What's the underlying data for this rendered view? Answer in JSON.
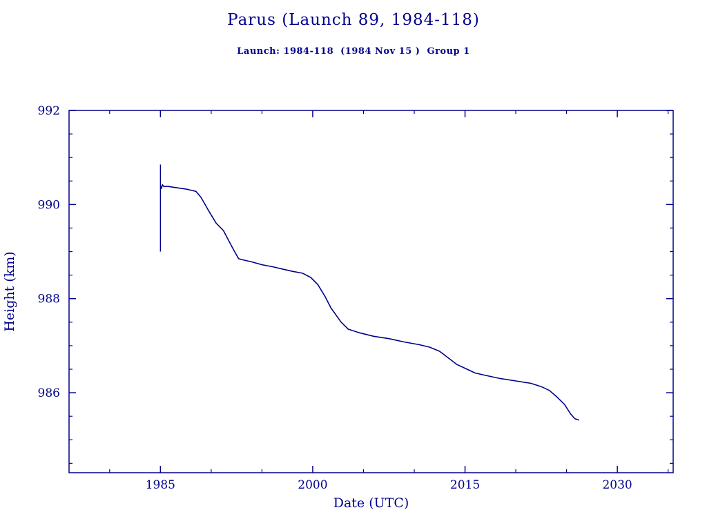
{
  "colors": {
    "ink": "#00008B",
    "background": "#ffffff",
    "line": "#00008B"
  },
  "chart_data": {
    "type": "line",
    "title": "Parus (Launch 89, 1984-118)",
    "subtitle": "Launch: 1984-118  (1984 Nov 15 )  Group 1",
    "xlabel": "Date (UTC)",
    "ylabel": "Height (km)",
    "xlim": [
      1976,
      2035.5
    ],
    "ylim": [
      984.3,
      992
    ],
    "x_major_ticks": [
      1985,
      2000,
      2015,
      2030
    ],
    "x_minor_step": 5,
    "y_major_ticks": [
      986,
      988,
      990,
      992
    ],
    "y_minor_step": 0.5,
    "grid": false,
    "legend": "none",
    "vertical_marker": {
      "x": 1985.0,
      "y_from": 989.0,
      "y_to": 990.85
    },
    "series": [
      {
        "name": "orbital-height",
        "points": [
          [
            1985.0,
            990.4
          ],
          [
            1985.1,
            990.34
          ],
          [
            1985.2,
            990.42
          ],
          [
            1985.35,
            990.38
          ],
          [
            1985.6,
            990.39
          ],
          [
            1986.5,
            990.36
          ],
          [
            1987.5,
            990.33
          ],
          [
            1988.5,
            990.28
          ],
          [
            1989.0,
            990.15
          ],
          [
            1989.8,
            989.85
          ],
          [
            1990.5,
            989.6
          ],
          [
            1991.2,
            989.45
          ],
          [
            1991.8,
            989.2
          ],
          [
            1992.3,
            989.0
          ],
          [
            1992.7,
            988.85
          ],
          [
            1993.0,
            988.83
          ],
          [
            1994.0,
            988.78
          ],
          [
            1995.0,
            988.72
          ],
          [
            1996.0,
            988.68
          ],
          [
            1997.0,
            988.63
          ],
          [
            1998.0,
            988.58
          ],
          [
            1999.0,
            988.54
          ],
          [
            1999.8,
            988.45
          ],
          [
            2000.5,
            988.3
          ],
          [
            2001.2,
            988.05
          ],
          [
            2001.8,
            987.8
          ],
          [
            2002.3,
            987.65
          ],
          [
            2002.8,
            987.5
          ],
          [
            2003.5,
            987.35
          ],
          [
            2004.5,
            987.28
          ],
          [
            2006.0,
            987.2
          ],
          [
            2007.5,
            987.15
          ],
          [
            2009.0,
            987.08
          ],
          [
            2010.5,
            987.02
          ],
          [
            2011.5,
            986.97
          ],
          [
            2012.5,
            986.88
          ],
          [
            2013.3,
            986.75
          ],
          [
            2014.2,
            986.6
          ],
          [
            2015.0,
            986.52
          ],
          [
            2016.0,
            986.42
          ],
          [
            2017.0,
            986.37
          ],
          [
            2018.5,
            986.3
          ],
          [
            2020.0,
            986.25
          ],
          [
            2021.5,
            986.2
          ],
          [
            2022.5,
            986.13
          ],
          [
            2023.3,
            986.05
          ],
          [
            2024.0,
            985.92
          ],
          [
            2024.8,
            985.75
          ],
          [
            2025.4,
            985.55
          ],
          [
            2025.8,
            985.45
          ],
          [
            2026.2,
            985.42
          ]
        ]
      }
    ]
  }
}
